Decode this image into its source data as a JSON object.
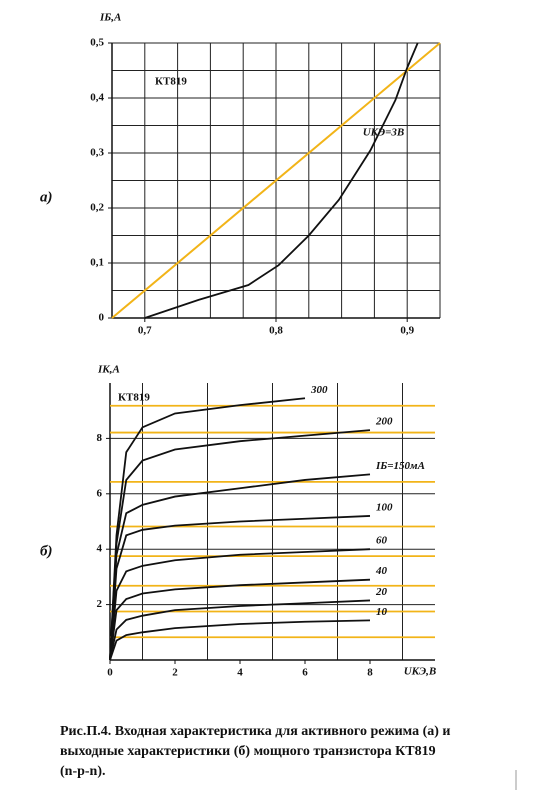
{
  "chart_data": [
    {
      "type": "line",
      "panel_label": "а)",
      "ylabel": "IБ,А",
      "annotations": [
        "КТ819"
      ],
      "xlim": [
        0.675,
        0.925
      ],
      "ylim": [
        0,
        0.5
      ],
      "xticks": [
        {
          "value": 0.7,
          "label": "0,7"
        },
        {
          "value": 0.8,
          "label": "0,8"
        },
        {
          "value": 0.9,
          "label": "0,9"
        }
      ],
      "yticks": [
        0,
        {
          "value": 0.1,
          "label": "0,1"
        },
        {
          "value": 0.2,
          "label": "0,2"
        },
        {
          "value": 0.3,
          "label": "0,3"
        },
        {
          "value": 0.4,
          "label": "0,4"
        },
        {
          "value": 0.5,
          "label": "0,5"
        }
      ],
      "grid_x": [
        0.675,
        0.7,
        0.725,
        0.75,
        0.775,
        0.8,
        0.825,
        0.85,
        0.875,
        0.9,
        0.925
      ],
      "grid_y": [
        0,
        0.05,
        0.1,
        0.15,
        0.2,
        0.25,
        0.3,
        0.35,
        0.4,
        0.45,
        0.5
      ],
      "series": [
        {
          "color": "#f2b418",
          "x": [
            0.675,
            0.925
          ],
          "values": [
            0,
            0.5
          ]
        },
        {
          "name": "UКЭ=3В",
          "color": "#111111",
          "x": [
            0.7,
            0.741,
            0.779,
            0.802,
            0.825,
            0.848,
            0.872,
            0.891,
            0.9,
            0.908
          ],
          "values": [
            0,
            0.033,
            0.06,
            0.096,
            0.15,
            0.215,
            0.305,
            0.396,
            0.455,
            0.5
          ]
        }
      ]
    },
    {
      "type": "line",
      "panel_label": "б)",
      "ylabel": "IК,А",
      "xlabel": "UКЭ,В",
      "annotations": [
        "КТ819"
      ],
      "xlim": [
        0,
        10
      ],
      "ylim": [
        0,
        10
      ],
      "xticks": [
        0,
        2,
        4,
        6,
        8
      ],
      "yticks": [
        2,
        4,
        6,
        8
      ],
      "grid_x": [
        1,
        3,
        5,
        7,
        9
      ],
      "grid_y": [
        2,
        4,
        6,
        8
      ],
      "hlines": {
        "color": "#f2b418",
        "values": [
          9.18,
          8.21,
          6.43,
          4.82,
          3.75,
          2.68,
          1.75,
          0.82
        ]
      },
      "x": [
        0,
        0.2,
        0.5,
        1,
        2,
        4,
        6,
        8
      ],
      "series": [
        {
          "name": "300",
          "color": "#111111",
          "values": [
            0,
            4.5,
            7.5,
            8.4,
            8.9,
            9.2,
            9.45,
            null
          ]
        },
        {
          "name": "200",
          "color": "#111111",
          "values": [
            0,
            4.2,
            6.5,
            7.2,
            7.6,
            7.9,
            8.1,
            8.3
          ]
        },
        {
          "name": "IБ=150мА",
          "color": "#111111",
          "values": [
            0,
            3.8,
            5.3,
            5.6,
            5.9,
            6.2,
            6.5,
            6.7
          ]
        },
        {
          "name": "100",
          "color": "#111111",
          "values": [
            0,
            3.3,
            4.5,
            4.7,
            4.85,
            5.0,
            5.1,
            5.2
          ]
        },
        {
          "name": "60",
          "color": "#111111",
          "values": [
            0,
            2.5,
            3.2,
            3.4,
            3.6,
            3.8,
            3.9,
            4.0
          ]
        },
        {
          "name": "40",
          "color": "#111111",
          "values": [
            0,
            1.8,
            2.2,
            2.4,
            2.55,
            2.7,
            2.8,
            2.9
          ]
        },
        {
          "name": "20",
          "color": "#111111",
          "values": [
            0,
            1.1,
            1.45,
            1.6,
            1.8,
            1.95,
            2.05,
            2.15
          ]
        },
        {
          "name": "10",
          "color": "#111111",
          "values": [
            0,
            0.7,
            0.9,
            1.0,
            1.15,
            1.3,
            1.38,
            1.43
          ]
        }
      ]
    }
  ],
  "caption": [
    "Рис.П.4. Входная характеристика для активного режима (а) и",
    "выходные характеристики (б) мощного транзистора КТ819",
    "(n-p-n)."
  ]
}
